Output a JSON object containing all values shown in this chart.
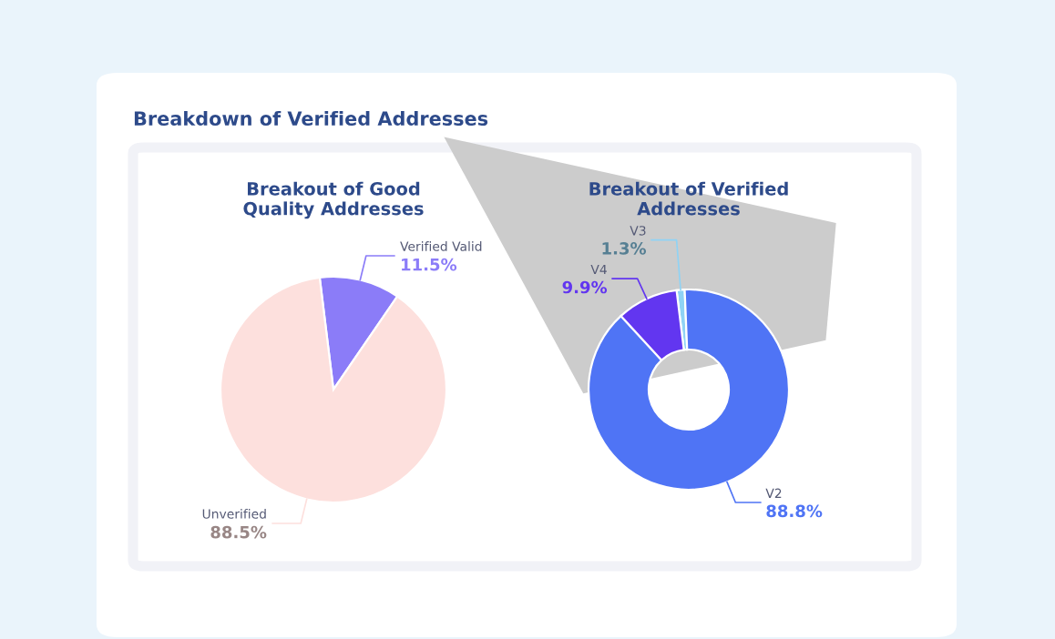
{
  "chart_data": [
    {
      "type": "other",
      "title": "Breakdown of Verified Addresses"
    },
    {
      "type": "pie",
      "title": "Breakout of Good\nQuality Addresses",
      "categories": [
        "Verified Valid",
        "Unverified"
      ],
      "values": [
        11.5,
        88.5
      ],
      "colors": [
        "#8b7cf8",
        "#fde0dd"
      ],
      "value_labels": [
        "11.5%",
        "88.5%"
      ]
    },
    {
      "type": "donut",
      "title": "Breakout of Verified\nAddresses",
      "categories": [
        "V3",
        "V2",
        "V4"
      ],
      "values": [
        1.3,
        88.8,
        9.9
      ],
      "colors": [
        "#8fd3f5",
        "#4f74f5",
        "#6236f0"
      ],
      "value_labels": [
        "1.3%",
        "88.8%",
        "9.9%"
      ]
    }
  ]
}
